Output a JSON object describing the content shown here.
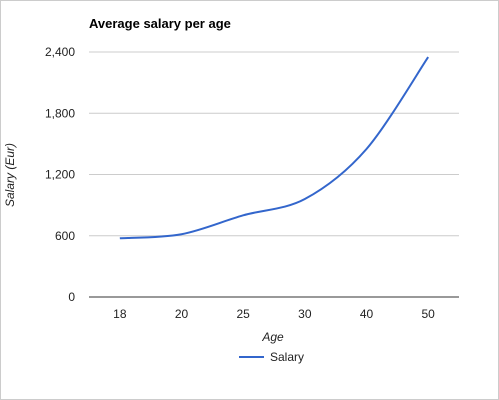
{
  "chart_data": {
    "type": "line",
    "title": "Average salary per age",
    "xlabel": "Age",
    "ylabel": "Salary (Eur)",
    "categories": [
      "18",
      "20",
      "25",
      "30",
      "40",
      "50"
    ],
    "series": [
      {
        "name": "Salary",
        "values": [
          575,
          615,
          800,
          960,
          1450,
          2350
        ],
        "color": "#3366cc"
      }
    ],
    "ylim": [
      0,
      2400
    ],
    "yticks": [
      0,
      600,
      1200,
      1800,
      2400
    ],
    "ytick_labels": [
      "0",
      "600",
      "1,200",
      "1,800",
      "2,400"
    ],
    "grid": true,
    "legend": "bottom"
  }
}
